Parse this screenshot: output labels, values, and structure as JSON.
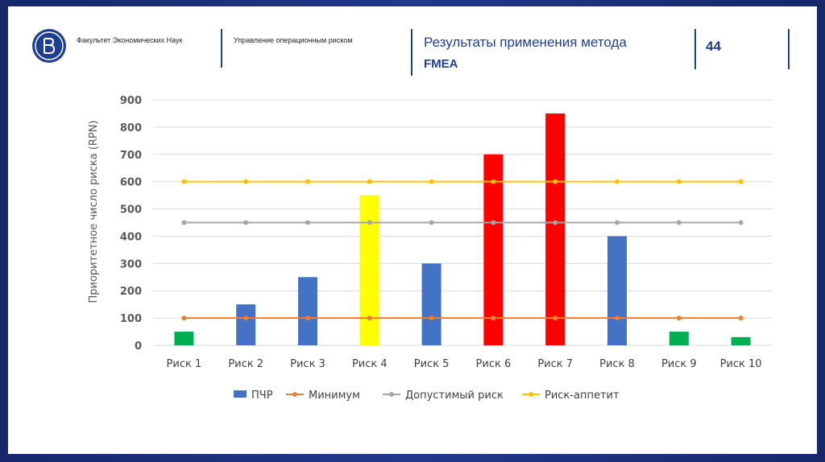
{
  "header": {
    "org": "Факультет Экономических Наук",
    "dept": "Управление операционным риском",
    "title_line1": "Результаты применения метода",
    "title_line2": "FMEA",
    "page_number": "44"
  },
  "colors": {
    "brand": "#1f3f94",
    "bar_default": "#4472c4",
    "bar_green": "#00b050",
    "bar_yellow": "#ffff00",
    "bar_red": "#ff0000",
    "line_min": "#ed7d31",
    "line_allowed": "#a5a5a5",
    "line_appetite": "#ffc000",
    "grid": "#d9d9d9"
  },
  "chart_data": {
    "type": "bar",
    "title": "",
    "ylabel": "Приоритетное число риска (RPN)",
    "xlabel": "",
    "ylim": [
      0,
      900
    ],
    "yticks": [
      0,
      100,
      200,
      300,
      400,
      500,
      600,
      700,
      800,
      900
    ],
    "categories": [
      "Риск 1",
      "Риск 2",
      "Риск 3",
      "Риск 4",
      "Риск 5",
      "Риск 6",
      "Риск 7",
      "Риск 8",
      "Риск 9",
      "Риск 10"
    ],
    "series": [
      {
        "name": "ПЧР",
        "kind": "bar",
        "values": [
          50,
          150,
          250,
          550,
          300,
          700,
          850,
          400,
          50,
          30
        ],
        "bar_colors": [
          "#00b050",
          "#4472c4",
          "#4472c4",
          "#ffff00",
          "#4472c4",
          "#ff0000",
          "#ff0000",
          "#4472c4",
          "#00b050",
          "#00b050"
        ]
      },
      {
        "name": "Минимум",
        "kind": "line",
        "color": "#ed7d31",
        "values": [
          100,
          100,
          100,
          100,
          100,
          100,
          100,
          100,
          100,
          100
        ]
      },
      {
        "name": "Допустимый риск",
        "kind": "line",
        "color": "#a5a5a5",
        "values": [
          450,
          450,
          450,
          450,
          450,
          450,
          450,
          450,
          450,
          450
        ]
      },
      {
        "name": "Риск-аппетит",
        "kind": "line",
        "color": "#ffc000",
        "values": [
          600,
          600,
          600,
          600,
          600,
          600,
          600,
          600,
          600,
          600
        ]
      }
    ],
    "legend": "bottom",
    "grid": true
  }
}
